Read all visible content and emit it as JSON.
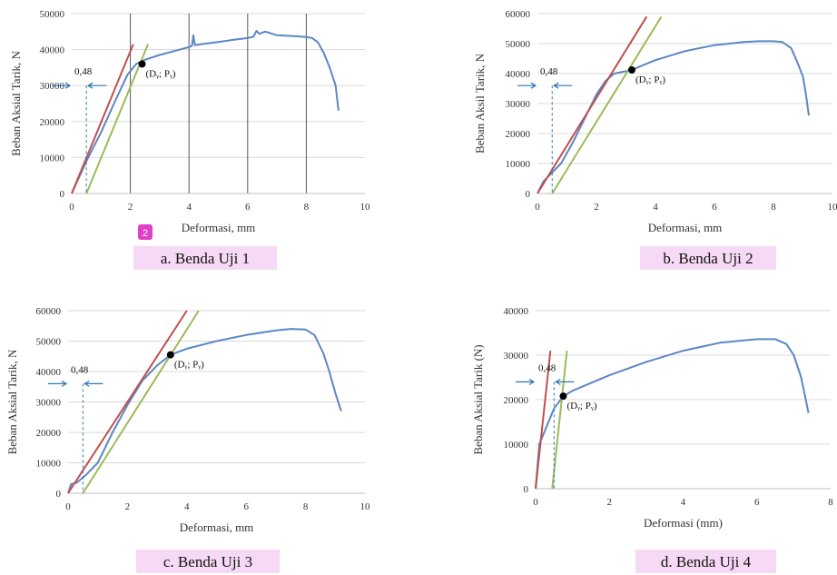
{
  "figure_badge": "2",
  "chart_data": [
    {
      "type": "line",
      "caption": "a.  Benda Uji 1",
      "xlabel": "Deformasi, mm",
      "ylabel": "Beban Aksial Tarik, N",
      "xlim": [
        0,
        10
      ],
      "ylim": [
        0,
        50000
      ],
      "xticks": [
        "0",
        "2",
        "4",
        "6",
        "8",
        "10"
      ],
      "yticks": [
        "0",
        "10000",
        "20000",
        "30000",
        "40000",
        "50000"
      ],
      "vertical_gridlines": [
        2,
        4,
        6,
        8
      ],
      "offset_label": "0,48",
      "point_label": "(Dᵧ; Pᵧ)",
      "yield_point": {
        "x": 2.4,
        "y": 36000
      },
      "series": [
        {
          "role": "curve",
          "color": "#5b87c5",
          "points": [
            [
              0,
              0
            ],
            [
              0.5,
              9000
            ],
            [
              1,
              17000
            ],
            [
              1.5,
              26000
            ],
            [
              1.9,
              33000
            ],
            [
              2.2,
              36000
            ],
            [
              2.5,
              37200
            ],
            [
              3,
              38500
            ],
            [
              3.5,
              39600
            ],
            [
              4,
              40700
            ],
            [
              4.1,
              41000
            ],
            [
              4.15,
              44000
            ],
            [
              4.2,
              41200
            ],
            [
              4.5,
              41600
            ],
            [
              5,
              42100
            ],
            [
              5.5,
              42700
            ],
            [
              6,
              43200
            ],
            [
              6.2,
              43600
            ],
            [
              6.3,
              45200
            ],
            [
              6.4,
              44400
            ],
            [
              6.6,
              45000
            ],
            [
              7,
              44000
            ],
            [
              7.5,
              43800
            ],
            [
              8,
              43500
            ],
            [
              8.2,
              43200
            ],
            [
              8.4,
              42000
            ],
            [
              8.6,
              39000
            ],
            [
              8.8,
              35000
            ],
            [
              9,
              30000
            ],
            [
              9.1,
              23000
            ]
          ]
        },
        {
          "role": "elastic-line",
          "color": "#c0504d",
          "points": [
            [
              0,
              0
            ],
            [
              2.1,
              41500
            ]
          ]
        },
        {
          "role": "offset-line",
          "color": "#9bbb59",
          "points": [
            [
              0.5,
              0
            ],
            [
              2.6,
              41500
            ]
          ]
        }
      ]
    },
    {
      "type": "line",
      "caption": "b. Benda Uji 2",
      "xlabel": "Deformasi, mm",
      "ylabel": "Beban Aksil Tarik, N",
      "xlim": [
        0,
        10
      ],
      "ylim": [
        0,
        60000
      ],
      "xticks": [
        "0",
        "2",
        "4",
        "6",
        "8",
        "10"
      ],
      "yticks": [
        "0",
        "10000",
        "20000",
        "30000",
        "40000",
        "50000",
        "60000"
      ],
      "vertical_gridlines": [],
      "offset_label": "0,48",
      "point_label": "(Dᵧ; Pᵧ)",
      "yield_point": {
        "x": 3.2,
        "y": 41200
      },
      "series": [
        {
          "role": "curve",
          "color": "#5b87c5",
          "points": [
            [
              0,
              0
            ],
            [
              0.2,
              4000
            ],
            [
              0.5,
              7000
            ],
            [
              0.8,
              10000
            ],
            [
              1.2,
              17000
            ],
            [
              1.6,
              25000
            ],
            [
              2,
              33000
            ],
            [
              2.3,
              37500
            ],
            [
              2.6,
              40000
            ],
            [
              3,
              40800
            ],
            [
              3.2,
              41200
            ],
            [
              3.5,
              42500
            ],
            [
              4,
              44500
            ],
            [
              5,
              47500
            ],
            [
              6,
              49500
            ],
            [
              7,
              50500
            ],
            [
              7.5,
              50800
            ],
            [
              8,
              50800
            ],
            [
              8.3,
              50500
            ],
            [
              8.6,
              48500
            ],
            [
              8.8,
              44000
            ],
            [
              9,
              39000
            ],
            [
              9.1,
              33000
            ],
            [
              9.2,
              26000
            ]
          ]
        },
        {
          "role": "elastic-line",
          "color": "#c0504d",
          "points": [
            [
              0,
              0
            ],
            [
              3.7,
              59000
            ]
          ]
        },
        {
          "role": "offset-line",
          "color": "#9bbb59",
          "points": [
            [
              0.5,
              0
            ],
            [
              4.2,
              59000
            ]
          ]
        }
      ]
    },
    {
      "type": "line",
      "caption": "c.  Benda Uji 3",
      "xlabel": "Deformasi, mm",
      "ylabel": "Beban Aksial Tarik, N",
      "xlim": [
        0,
        10
      ],
      "ylim": [
        0,
        60000
      ],
      "xticks": [
        "0",
        "2",
        "4",
        "6",
        "8",
        "10"
      ],
      "yticks": [
        "0",
        "10000",
        "20000",
        "30000",
        "40000",
        "50000",
        "60000"
      ],
      "vertical_gridlines": [],
      "offset_label": "0,48",
      "point_label": "(Dᵧ; Pᵧ)",
      "yield_point": {
        "x": 3.45,
        "y": 45500
      },
      "series": [
        {
          "role": "curve",
          "color": "#5b87c5",
          "points": [
            [
              0,
              0
            ],
            [
              0.1,
              3000
            ],
            [
              0.3,
              3500
            ],
            [
              0.6,
              6000
            ],
            [
              1,
              10000
            ],
            [
              1.5,
              20000
            ],
            [
              2,
              29000
            ],
            [
              2.5,
              37000
            ],
            [
              3,
              42000
            ],
            [
              3.45,
              45500
            ],
            [
              4,
              47500
            ],
            [
              5,
              50000
            ],
            [
              6,
              52000
            ],
            [
              7,
              53500
            ],
            [
              7.5,
              54000
            ],
            [
              8,
              53800
            ],
            [
              8.3,
              52000
            ],
            [
              8.6,
              46000
            ],
            [
              8.8,
              40000
            ],
            [
              9,
              33000
            ],
            [
              9.2,
              27000
            ]
          ]
        },
        {
          "role": "elastic-line",
          "color": "#c0504d",
          "points": [
            [
              0,
              0
            ],
            [
              4,
              60000
            ]
          ]
        },
        {
          "role": "offset-line",
          "color": "#9bbb59",
          "points": [
            [
              0.5,
              0
            ],
            [
              4.4,
              60000
            ]
          ]
        }
      ]
    },
    {
      "type": "line",
      "caption": "d. Benda Uji 4",
      "xlabel": "Deformasi (mm)",
      "ylabel": "Beban Aksial Tarik (N)",
      "xlim": [
        0,
        8
      ],
      "ylim": [
        0,
        40000
      ],
      "xticks": [
        "0",
        "2",
        "4",
        "6",
        "8"
      ],
      "yticks": [
        "0",
        "10000",
        "20000",
        "30000",
        "40000"
      ],
      "vertical_gridlines": [],
      "offset_label": "0,48",
      "point_label": "(Dᵧ; Pᵧ)",
      "yield_point": {
        "x": 0.75,
        "y": 20800
      },
      "series": [
        {
          "role": "curve",
          "color": "#5b87c5",
          "points": [
            [
              0,
              0
            ],
            [
              0.1,
              10000
            ],
            [
              0.3,
              14000
            ],
            [
              0.5,
              18000
            ],
            [
              0.75,
              20800
            ],
            [
              1,
              22000
            ],
            [
              2,
              25500
            ],
            [
              3,
              28500
            ],
            [
              4,
              31000
            ],
            [
              5,
              32800
            ],
            [
              6,
              33600
            ],
            [
              6.5,
              33600
            ],
            [
              6.8,
              32500
            ],
            [
              7,
              30000
            ],
            [
              7.2,
              25000
            ],
            [
              7.3,
              21000
            ],
            [
              7.4,
              17000
            ]
          ]
        },
        {
          "role": "elastic-line",
          "color": "#c0504d",
          "points": [
            [
              0,
              0
            ],
            [
              0.4,
              31000
            ]
          ]
        },
        {
          "role": "offset-line",
          "color": "#9bbb59",
          "points": [
            [
              0.45,
              0
            ],
            [
              0.85,
              31000
            ]
          ]
        }
      ]
    }
  ]
}
